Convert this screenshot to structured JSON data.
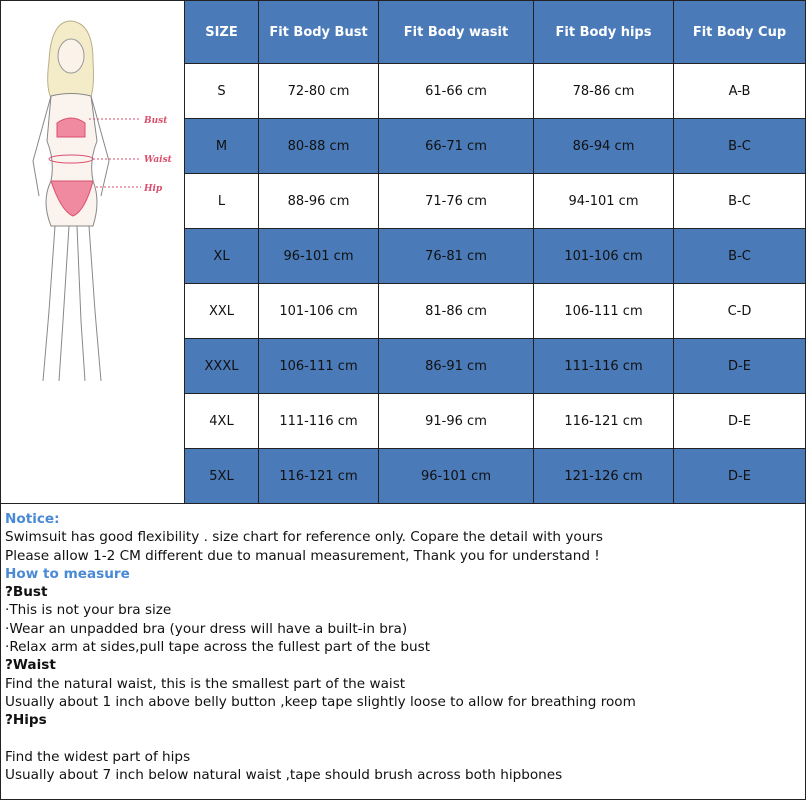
{
  "table": {
    "headers": [
      "SIZE",
      "Fit Body Bust",
      "Fit Body wasit",
      "Fit Body hips",
      "Fit Body Cup"
    ],
    "rows": [
      [
        "S",
        "72-80 cm",
        "61-66 cm",
        "78-86 cm",
        "A-B"
      ],
      [
        "M",
        "80-88 cm",
        "66-71 cm",
        "86-94 cm",
        "B-C"
      ],
      [
        "L",
        "88-96 cm",
        "71-76 cm",
        "94-101 cm",
        "B-C"
      ],
      [
        "XL",
        "96-101 cm",
        "76-81 cm",
        "101-106 cm",
        "B-C"
      ],
      [
        "XXL",
        "101-106 cm",
        "81-86 cm",
        "106-111 cm",
        "C-D"
      ],
      [
        "XXXL",
        "106-111 cm",
        "86-91 cm",
        "111-116 cm",
        "D-E"
      ],
      [
        "4XL",
        "111-116 cm",
        "91-96 cm",
        "116-121 cm",
        "D-E"
      ],
      [
        "5XL",
        "116-121 cm",
        "96-101 cm",
        "121-126 cm",
        "D-E"
      ]
    ]
  },
  "illustration": {
    "labels": [
      "Bust",
      "Waist",
      "Hip"
    ]
  },
  "notes": {
    "notice_title": "Notice:",
    "notice_lines": [
      "Swimsuit has good flexibility . size chart for reference only. Copare the detail with yours",
      "Please allow 1-2 CM different due to manual measurement, Thank you for understand !"
    ],
    "how_title": "How to measure",
    "bust_title": "?Bust",
    "bust_lines": [
      "·This is not your bra size",
      "·Wear an unpadded bra (your dress will have a built-in bra)",
      "·Relax arm at sides,pull tape across the fullest part of the bust"
    ],
    "waist_title": "?Waist",
    "waist_lines": [
      "Find the natural waist, this is the smallest part of the waist",
      "Usually about 1 inch above belly button ,keep tape slightly loose to allow for breathing room"
    ],
    "hips_title": "?Hips",
    "hips_lines": [
      "Find the widest part of hips",
      "Usually about 7 inch below natural waist ,tape should brush across both hipbones"
    ]
  },
  "colors": {
    "header_blue": "#4a7ab8",
    "heading_blue": "#4a8ad4",
    "measure_pink": "#e0607a"
  }
}
